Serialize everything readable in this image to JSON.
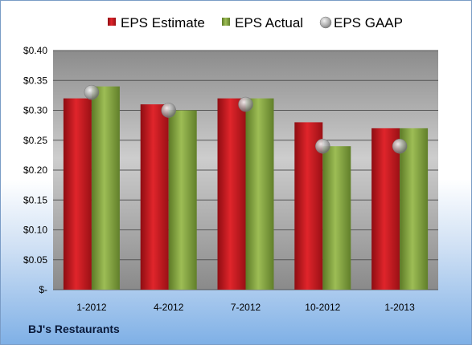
{
  "chart_data": {
    "type": "bar",
    "title": "",
    "xlabel": "",
    "ylabel": "",
    "categories": [
      "1-2012",
      "4-2012",
      "7-2012",
      "10-2012",
      "1-2013"
    ],
    "series": [
      {
        "name": "EPS Estimate",
        "kind": "bar",
        "color": "#c0191f",
        "values": [
          0.32,
          0.31,
          0.32,
          0.28,
          0.27
        ]
      },
      {
        "name": "EPS Actual",
        "kind": "bar",
        "color": "#7a9a3a",
        "values": [
          0.34,
          0.3,
          0.32,
          0.24,
          0.27
        ]
      },
      {
        "name": "EPS GAAP",
        "kind": "marker",
        "color": "#a9a9a9",
        "values": [
          0.33,
          0.3,
          0.31,
          0.24,
          0.24
        ]
      }
    ],
    "ylim": [
      0,
      0.4
    ],
    "yticks": [
      0,
      0.05,
      0.1,
      0.15,
      0.2,
      0.25,
      0.3,
      0.35,
      0.4
    ],
    "ytick_labels": [
      "$-",
      "$0.05",
      "$0.10",
      "$0.15",
      "$0.20",
      "$0.25",
      "$0.30",
      "$0.35",
      "$0.40"
    ],
    "grid": true,
    "legend_position": "top"
  },
  "footer": {
    "company": "BJ's Restaurants"
  }
}
